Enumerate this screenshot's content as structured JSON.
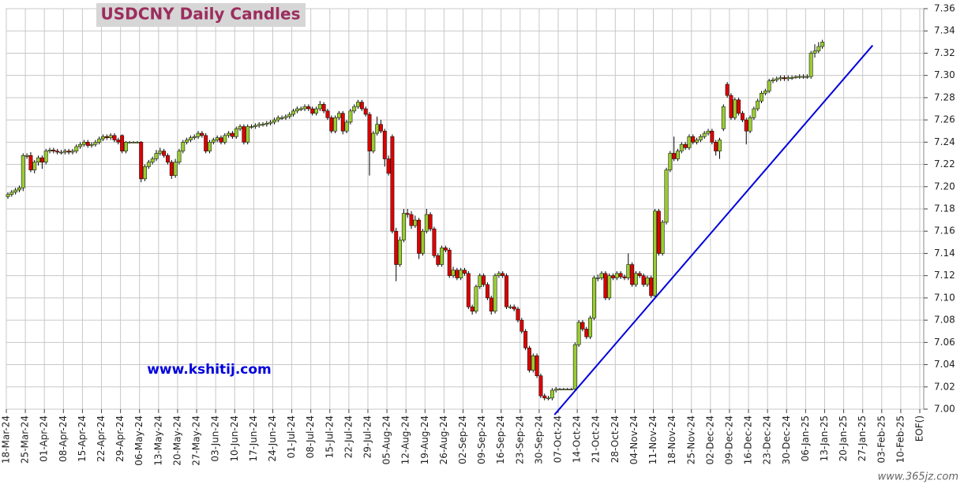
{
  "chart_data": {
    "type": "candlestick",
    "title": "USDCNY Daily Candles",
    "annotation": "www.kshitij.com",
    "source": "www.365jz.com",
    "categories": [
      "18-Mar-24",
      "25-Mar-24",
      "01-Apr-24",
      "08-Apr-24",
      "15-Apr-24",
      "22-Apr-24",
      "29-Apr-24",
      "06-May-24",
      "13-May-24",
      "20-May-24",
      "27-May-24",
      "03-Jun-24",
      "10-Jun-24",
      "17-Jun-24",
      "24-Jun-24",
      "01-Jul-24",
      "08-Jul-24",
      "15-Jul-24",
      "22-Jul-24",
      "29-Jul-24",
      "05-Aug-24",
      "12-Aug-24",
      "19-Aug-24",
      "26-Aug-24",
      "02-Sep-24",
      "09-Sep-24",
      "16-Sep-24",
      "23-Sep-24",
      "30-Sep-24",
      "07-Oct-24",
      "14-Oct-24",
      "21-Oct-24",
      "28-Oct-24",
      "04-Nov-24",
      "11-Nov-24",
      "18-Nov-24",
      "25-Nov-24",
      "02-Dec-24",
      "09-Dec-24",
      "16-Dec-24",
      "23-Dec-24",
      "30-Dec-24",
      "06-Jan-25",
      "13-Jan-25",
      "20-Jan-25",
      "27-Jan-25",
      "03-Feb-25",
      "10-Feb-25",
      "EOF()"
    ],
    "up_color": "#99cc33",
    "down_color": "#dd0000",
    "ohlc": [
      [
        7.191,
        7.195,
        7.189,
        7.193
      ],
      [
        7.193,
        7.197,
        7.191,
        7.195
      ],
      [
        7.195,
        7.199,
        7.193,
        7.197
      ],
      [
        7.197,
        7.201,
        7.195,
        7.199
      ],
      [
        7.199,
        7.23,
        7.196,
        7.228
      ],
      [
        7.228,
        7.23,
        7.225,
        7.228
      ],
      [
        7.228,
        7.231,
        7.213,
        7.215
      ],
      [
        7.215,
        7.224,
        7.212,
        7.222
      ],
      [
        7.222,
        7.228,
        7.219,
        7.226
      ],
      [
        7.226,
        7.228,
        7.216,
        7.222
      ],
      [
        7.222,
        7.234,
        7.22,
        7.232
      ],
      [
        7.232,
        7.235,
        7.23,
        7.233
      ],
      [
        7.233,
        7.235,
        7.23,
        7.232
      ],
      [
        7.232,
        7.234,
        7.229,
        7.231
      ],
      [
        7.231,
        7.233,
        7.229,
        7.231
      ],
      [
        7.231,
        7.234,
        7.229,
        7.232
      ],
      [
        7.232,
        7.234,
        7.229,
        7.231
      ],
      [
        7.231,
        7.234,
        7.229,
        7.232
      ],
      [
        7.232,
        7.238,
        7.23,
        7.236
      ],
      [
        7.236,
        7.24,
        7.234,
        7.238
      ],
      [
        7.238,
        7.242,
        7.236,
        7.24
      ],
      [
        7.24,
        7.242,
        7.235,
        7.237
      ],
      [
        7.237,
        7.24,
        7.235,
        7.238
      ],
      [
        7.238,
        7.242,
        7.236,
        7.24
      ],
      [
        7.24,
        7.245,
        7.238,
        7.243
      ],
      [
        7.243,
        7.247,
        7.241,
        7.245
      ],
      [
        7.245,
        7.247,
        7.242,
        7.244
      ],
      [
        7.244,
        7.248,
        7.242,
        7.246
      ],
      [
        7.246,
        7.248,
        7.24,
        7.242
      ],
      [
        7.242,
        7.244,
        7.238,
        7.24
      ],
      [
        7.246,
        7.247,
        7.23,
        7.232
      ],
      [
        7.232,
        7.241,
        7.23,
        7.24
      ],
      [
        7.24,
        7.241,
        7.239,
        7.24
      ],
      [
        7.24,
        7.241,
        7.239,
        7.24
      ],
      [
        7.24,
        7.241,
        7.239,
        7.24
      ],
      [
        7.24,
        7.241,
        7.204,
        7.207
      ],
      [
        7.207,
        7.22,
        7.205,
        7.218
      ],
      [
        7.218,
        7.224,
        7.216,
        7.222
      ],
      [
        7.222,
        7.227,
        7.22,
        7.225
      ],
      [
        7.225,
        7.233,
        7.223,
        7.23
      ],
      [
        7.23,
        7.235,
        7.228,
        7.232
      ],
      [
        7.232,
        7.234,
        7.226,
        7.228
      ],
      [
        7.228,
        7.23,
        7.22,
        7.222
      ],
      [
        7.222,
        7.224,
        7.207,
        7.21
      ],
      [
        7.21,
        7.225,
        7.208,
        7.222
      ],
      [
        7.222,
        7.234,
        7.22,
        7.232
      ],
      [
        7.232,
        7.242,
        7.23,
        7.24
      ],
      [
        7.24,
        7.244,
        7.238,
        7.242
      ],
      [
        7.242,
        7.246,
        7.24,
        7.244
      ],
      [
        7.244,
        7.247,
        7.242,
        7.245
      ],
      [
        7.245,
        7.25,
        7.243,
        7.248
      ],
      [
        7.248,
        7.25,
        7.244,
        7.246
      ],
      [
        7.246,
        7.248,
        7.23,
        7.232
      ],
      [
        7.232,
        7.242,
        7.23,
        7.24
      ],
      [
        7.24,
        7.244,
        7.238,
        7.242
      ],
      [
        7.242,
        7.246,
        7.24,
        7.244
      ],
      [
        7.244,
        7.246,
        7.238,
        7.24
      ],
      [
        7.24,
        7.248,
        7.238,
        7.246
      ],
      [
        7.246,
        7.25,
        7.244,
        7.248
      ],
      [
        7.248,
        7.25,
        7.243,
        7.245
      ],
      [
        7.245,
        7.254,
        7.243,
        7.252
      ],
      [
        7.252,
        7.256,
        7.25,
        7.254
      ],
      [
        7.254,
        7.256,
        7.238,
        7.24
      ],
      [
        7.24,
        7.256,
        7.238,
        7.254
      ],
      [
        7.254,
        7.256,
        7.252,
        7.254
      ],
      [
        7.254,
        7.257,
        7.252,
        7.255
      ],
      [
        7.255,
        7.258,
        7.253,
        7.256
      ],
      [
        7.256,
        7.258,
        7.254,
        7.256
      ],
      [
        7.256,
        7.259,
        7.254,
        7.257
      ],
      [
        7.257,
        7.26,
        7.255,
        7.258
      ],
      [
        7.258,
        7.262,
        7.256,
        7.26
      ],
      [
        7.26,
        7.264,
        7.258,
        7.262
      ],
      [
        7.262,
        7.264,
        7.26,
        7.262
      ],
      [
        7.262,
        7.265,
        7.26,
        7.263
      ],
      [
        7.263,
        7.267,
        7.261,
        7.265
      ],
      [
        7.265,
        7.27,
        7.263,
        7.268
      ],
      [
        7.268,
        7.272,
        7.266,
        7.27
      ],
      [
        7.27,
        7.272,
        7.268,
        7.27
      ],
      [
        7.27,
        7.274,
        7.268,
        7.272
      ],
      [
        7.272,
        7.274,
        7.268,
        7.27
      ],
      [
        7.27,
        7.272,
        7.264,
        7.266
      ],
      [
        7.266,
        7.272,
        7.264,
        7.27
      ],
      [
        7.27,
        7.277,
        7.268,
        7.274
      ],
      [
        7.274,
        7.276,
        7.266,
        7.268
      ],
      [
        7.268,
        7.27,
        7.26,
        7.262
      ],
      [
        7.262,
        7.264,
        7.248,
        7.25
      ],
      [
        7.25,
        7.264,
        7.248,
        7.262
      ],
      [
        7.262,
        7.268,
        7.26,
        7.266
      ],
      [
        7.266,
        7.268,
        7.247,
        7.25
      ],
      [
        7.25,
        7.26,
        7.248,
        7.258
      ],
      [
        7.258,
        7.27,
        7.256,
        7.268
      ],
      [
        7.268,
        7.274,
        7.266,
        7.272
      ],
      [
        7.272,
        7.278,
        7.27,
        7.276
      ],
      [
        7.276,
        7.278,
        7.268,
        7.27
      ],
      [
        7.27,
        7.272,
        7.263,
        7.265
      ],
      [
        7.265,
        7.267,
        7.21,
        7.232
      ],
      [
        7.232,
        7.25,
        7.23,
        7.248
      ],
      [
        7.248,
        7.263,
        7.246,
        7.256
      ],
      [
        7.256,
        7.26,
        7.248,
        7.25
      ],
      [
        7.25,
        7.252,
        7.218,
        7.225
      ],
      [
        7.225,
        7.228,
        7.21,
        7.212
      ],
      [
        7.245,
        7.247,
        7.158,
        7.16
      ],
      [
        7.16,
        7.163,
        7.115,
        7.13
      ],
      [
        7.13,
        7.155,
        7.128,
        7.152
      ],
      [
        7.152,
        7.18,
        7.15,
        7.176
      ],
      [
        7.176,
        7.18,
        7.172,
        7.175
      ],
      [
        7.175,
        7.178,
        7.162,
        7.165
      ],
      [
        7.165,
        7.174,
        7.163,
        7.17
      ],
      [
        7.17,
        7.172,
        7.135,
        7.14
      ],
      [
        7.14,
        7.162,
        7.138,
        7.16
      ],
      [
        7.16,
        7.18,
        7.158,
        7.175
      ],
      [
        7.175,
        7.177,
        7.16,
        7.162
      ],
      [
        7.162,
        7.164,
        7.136,
        7.138
      ],
      [
        7.138,
        7.14,
        7.128,
        7.13
      ],
      [
        7.13,
        7.147,
        7.128,
        7.145
      ],
      [
        7.145,
        7.147,
        7.141,
        7.143
      ],
      [
        7.143,
        7.145,
        7.118,
        7.12
      ],
      [
        7.12,
        7.128,
        7.118,
        7.125
      ],
      [
        7.125,
        7.127,
        7.116,
        7.118
      ],
      [
        7.118,
        7.127,
        7.116,
        7.125
      ],
      [
        7.125,
        7.127,
        7.12,
        7.122
      ],
      [
        7.122,
        7.124,
        7.09,
        7.092
      ],
      [
        7.092,
        7.094,
        7.085,
        7.088
      ],
      [
        7.088,
        7.112,
        7.086,
        7.11
      ],
      [
        7.11,
        7.122,
        7.108,
        7.12
      ],
      [
        7.12,
        7.122,
        7.11,
        7.112
      ],
      [
        7.112,
        7.114,
        7.098,
        7.1
      ],
      [
        7.1,
        7.102,
        7.085,
        7.088
      ],
      [
        7.088,
        7.122,
        7.086,
        7.12
      ],
      [
        7.12,
        7.124,
        7.118,
        7.122
      ],
      [
        7.122,
        7.124,
        7.118,
        7.12
      ],
      [
        7.12,
        7.122,
        7.09,
        7.092
      ],
      [
        7.092,
        7.094,
        7.09,
        7.092
      ],
      [
        7.092,
        7.094,
        7.088,
        7.09
      ],
      [
        7.09,
        7.092,
        7.078,
        7.08
      ],
      [
        7.08,
        7.082,
        7.068,
        7.07
      ],
      [
        7.07,
        7.072,
        7.053,
        7.055
      ],
      [
        7.055,
        7.057,
        7.033,
        7.035
      ],
      [
        7.035,
        7.05,
        7.033,
        7.048
      ],
      [
        7.048,
        7.05,
        7.028,
        7.03
      ],
      [
        7.03,
        7.032,
        7.01,
        7.012
      ],
      [
        7.012,
        7.014,
        7.008,
        7.01
      ],
      [
        7.01,
        7.012,
        7.008,
        7.01
      ],
      [
        7.01,
        7.019,
        7.008,
        7.017
      ],
      [
        7.017,
        7.02,
        7.015,
        7.018
      ],
      [
        7.018,
        7.019,
        7.017,
        7.018
      ],
      [
        7.018,
        7.019,
        7.017,
        7.018
      ],
      [
        7.018,
        7.019,
        7.017,
        7.018
      ],
      [
        7.018,
        7.019,
        7.017,
        7.018
      ],
      [
        7.018,
        7.06,
        7.016,
        7.058
      ],
      [
        7.058,
        7.08,
        7.056,
        7.078
      ],
      [
        7.078,
        7.08,
        7.07,
        7.072
      ],
      [
        7.072,
        7.074,
        7.063,
        7.065
      ],
      [
        7.065,
        7.084,
        7.063,
        7.082
      ],
      [
        7.082,
        7.12,
        7.08,
        7.118
      ],
      [
        7.118,
        7.121,
        7.115,
        7.118
      ],
      [
        7.118,
        7.124,
        7.116,
        7.122
      ],
      [
        7.122,
        7.124,
        7.098,
        7.1
      ],
      [
        7.1,
        7.122,
        7.098,
        7.12
      ],
      [
        7.12,
        7.122,
        7.116,
        7.118
      ],
      [
        7.118,
        7.124,
        7.116,
        7.122
      ],
      [
        7.122,
        7.124,
        7.117,
        7.119
      ],
      [
        7.119,
        7.121,
        7.116,
        7.118
      ],
      [
        7.118,
        7.14,
        7.116,
        7.13
      ],
      [
        7.13,
        7.132,
        7.11,
        7.112
      ],
      [
        7.112,
        7.124,
        7.11,
        7.122
      ],
      [
        7.122,
        7.124,
        7.118,
        7.12
      ],
      [
        7.12,
        7.122,
        7.11,
        7.112
      ],
      [
        7.112,
        7.12,
        7.11,
        7.118
      ],
      [
        7.118,
        7.12,
        7.1,
        7.102
      ],
      [
        7.102,
        7.18,
        7.1,
        7.178
      ],
      [
        7.178,
        7.18,
        7.138,
        7.14
      ],
      [
        7.14,
        7.17,
        7.138,
        7.168
      ],
      [
        7.168,
        7.217,
        7.166,
        7.215
      ],
      [
        7.215,
        7.232,
        7.213,
        7.23
      ],
      [
        7.23,
        7.245,
        7.223,
        7.225
      ],
      [
        7.225,
        7.234,
        7.223,
        7.232
      ],
      [
        7.232,
        7.24,
        7.23,
        7.238
      ],
      [
        7.238,
        7.24,
        7.233,
        7.235
      ],
      [
        7.235,
        7.247,
        7.233,
        7.245
      ],
      [
        7.245,
        7.247,
        7.238,
        7.24
      ],
      [
        7.24,
        7.244,
        7.238,
        7.242
      ],
      [
        7.242,
        7.247,
        7.24,
        7.245
      ],
      [
        7.245,
        7.25,
        7.243,
        7.248
      ],
      [
        7.248,
        7.252,
        7.246,
        7.25
      ],
      [
        7.25,
        7.252,
        7.238,
        7.24
      ],
      [
        7.24,
        7.242,
        7.228,
        7.232
      ],
      [
        7.232,
        7.244,
        7.225,
        7.242
      ],
      [
        7.252,
        7.274,
        7.25,
        7.272
      ],
      [
        7.292,
        7.294,
        7.28,
        7.282
      ],
      [
        7.282,
        7.284,
        7.26,
        7.262
      ],
      [
        7.262,
        7.28,
        7.26,
        7.278
      ],
      [
        7.278,
        7.28,
        7.264,
        7.266
      ],
      [
        7.266,
        7.268,
        7.258,
        7.26
      ],
      [
        7.26,
        7.262,
        7.238,
        7.25
      ],
      [
        7.25,
        7.264,
        7.248,
        7.262
      ],
      [
        7.262,
        7.272,
        7.26,
        7.27
      ],
      [
        7.27,
        7.279,
        7.268,
        7.277
      ],
      [
        7.277,
        7.286,
        7.275,
        7.284
      ],
      [
        7.284,
        7.288,
        7.282,
        7.286
      ],
      [
        7.286,
        7.297,
        7.284,
        7.295
      ],
      [
        7.295,
        7.298,
        7.293,
        7.296
      ],
      [
        7.296,
        7.299,
        7.294,
        7.297
      ],
      [
        7.297,
        7.3,
        7.295,
        7.298
      ],
      [
        7.298,
        7.3,
        7.295,
        7.297
      ],
      [
        7.297,
        7.3,
        7.295,
        7.298
      ],
      [
        7.298,
        7.3,
        7.296,
        7.298
      ],
      [
        7.298,
        7.3,
        7.297,
        7.299
      ],
      [
        7.299,
        7.301,
        7.297,
        7.299
      ],
      [
        7.299,
        7.301,
        7.297,
        7.299
      ],
      [
        7.299,
        7.301,
        7.297,
        7.299
      ],
      [
        7.299,
        7.322,
        7.297,
        7.32
      ],
      [
        7.32,
        7.328,
        7.316,
        7.322
      ],
      [
        7.322,
        7.33,
        7.32,
        7.326
      ],
      [
        7.326,
        7.332,
        7.324,
        7.33
      ]
    ],
    "trendline": {
      "color": "#0000dd",
      "x": [
        143.6,
        227.2
      ],
      "y": [
        6.995,
        7.327
      ]
    },
    "ylim": [
      7.0,
      7.36
    ],
    "yticks": [
      {
        "value": 7.0,
        "label": "7.00"
      },
      7.02,
      7.04,
      7.06,
      7.08,
      {
        "value": 7.1,
        "label": "7.10"
      },
      7.12,
      7.14,
      7.16,
      7.18,
      {
        "value": 7.2,
        "label": "7.20"
      },
      7.22,
      7.24,
      7.26,
      7.28,
      {
        "value": 7.3,
        "label": "7.30"
      },
      7.32,
      7.34,
      7.36
    ],
    "grid": true
  }
}
